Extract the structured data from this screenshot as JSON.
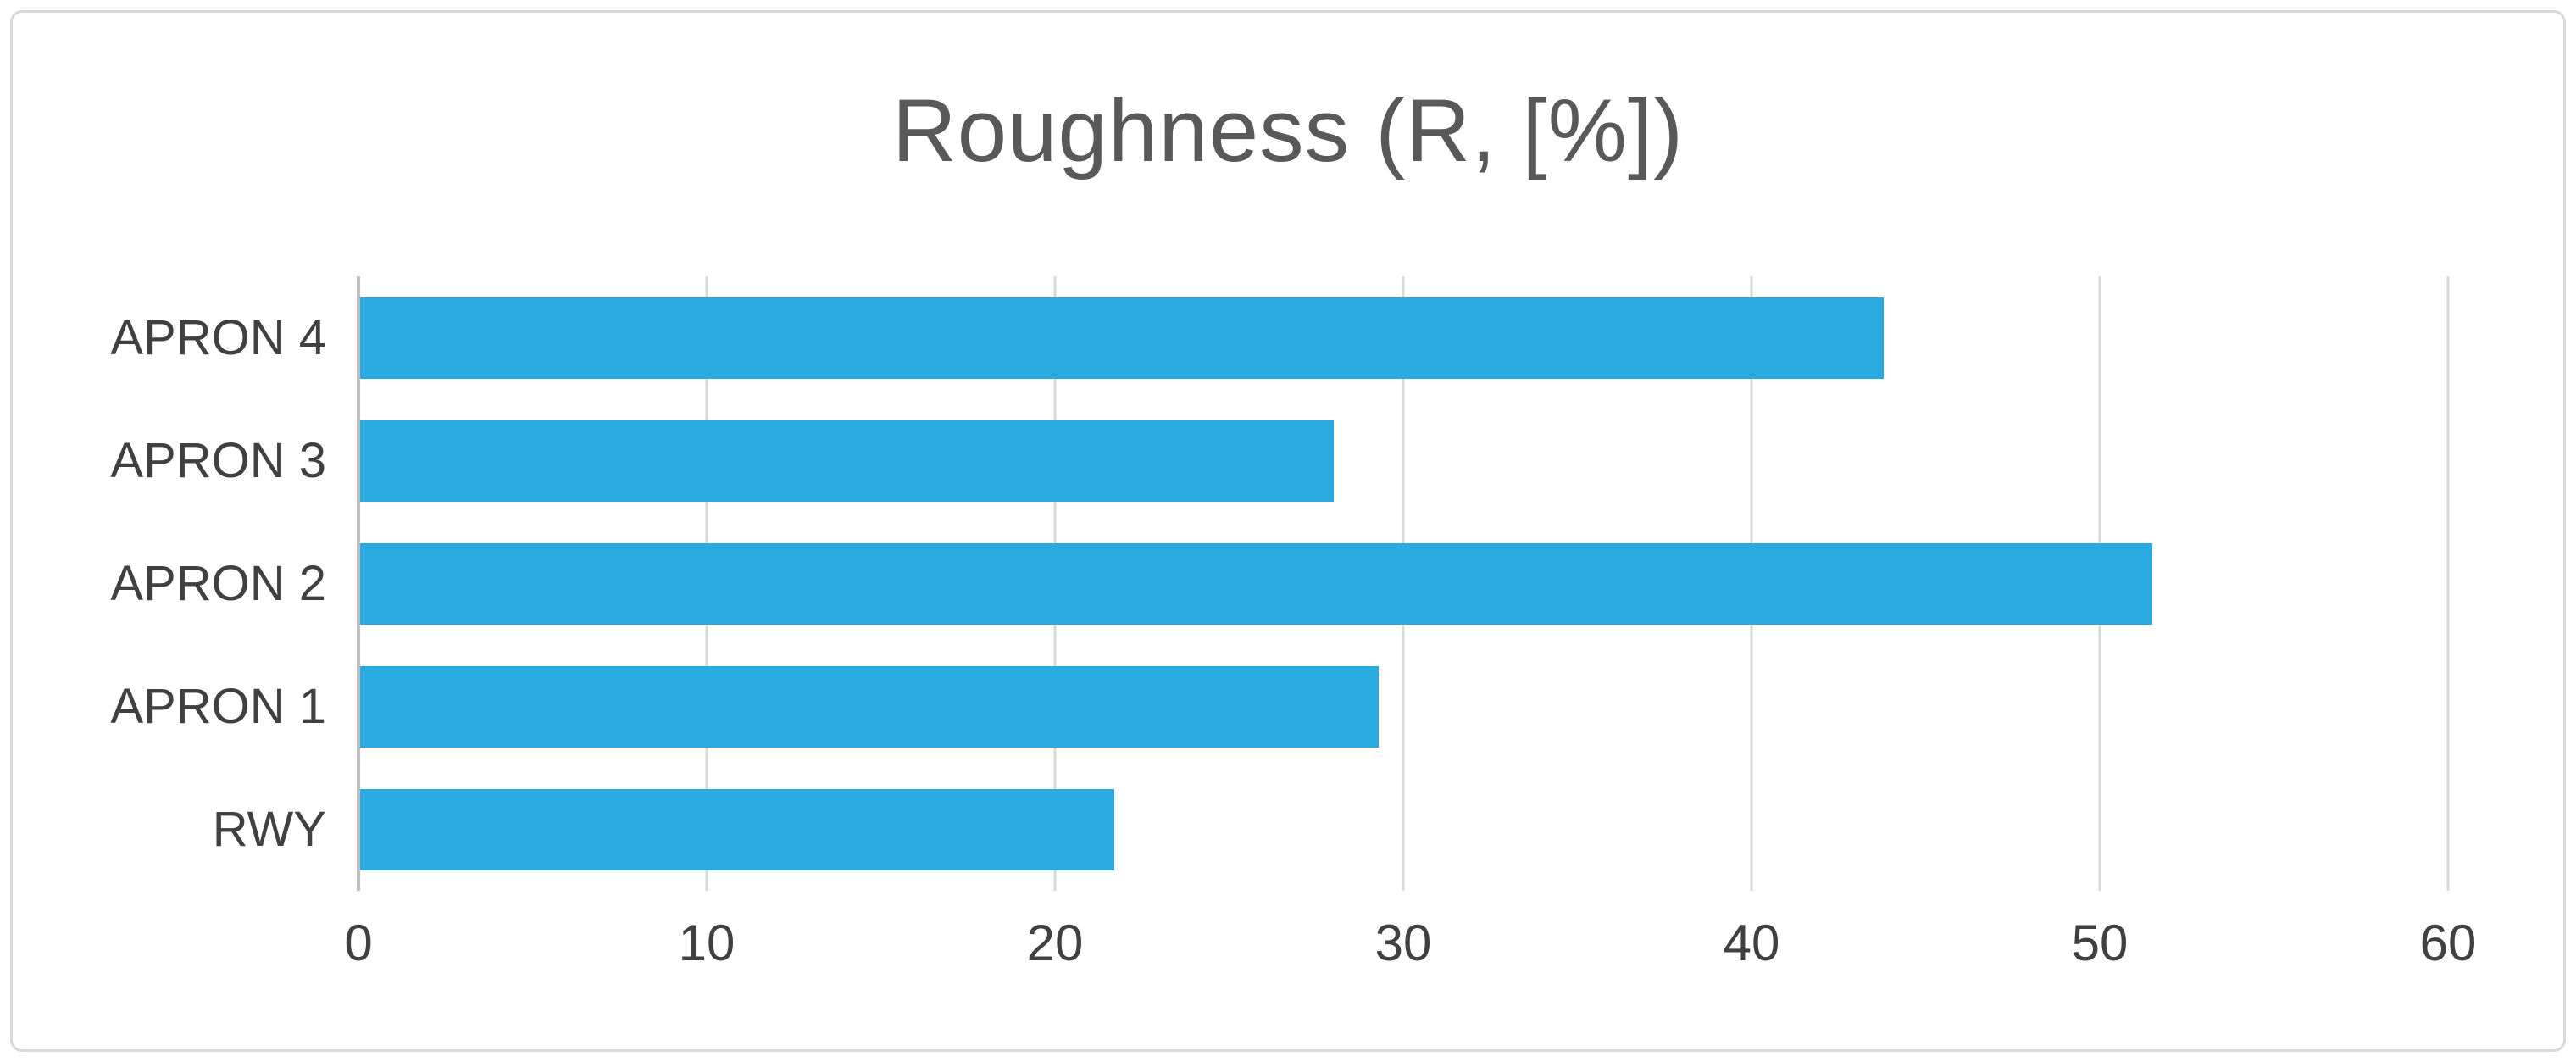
{
  "chart_data": {
    "type": "bar",
    "orientation": "horizontal",
    "title": "Roughness (R, [%])",
    "categories": [
      "APRON 4",
      "APRON 3",
      "APRON 2",
      "APRON 1",
      "RWY"
    ],
    "values": [
      43.8,
      28.0,
      51.5,
      29.3,
      21.7
    ],
    "xlabel": "",
    "ylabel": "",
    "xlim": [
      0,
      60
    ],
    "xticks": [
      0,
      10,
      20,
      30,
      40,
      50,
      60
    ],
    "grid": "vertical-major-only",
    "legend_position": "none"
  },
  "colors": {
    "bar": "#29abe2",
    "gridline": "#d9d9d9",
    "axis_line": "#bfbfbf",
    "title_text": "#595959",
    "label_text": "#404040",
    "frame_border": "#d9d9d9",
    "background": "#ffffff"
  }
}
